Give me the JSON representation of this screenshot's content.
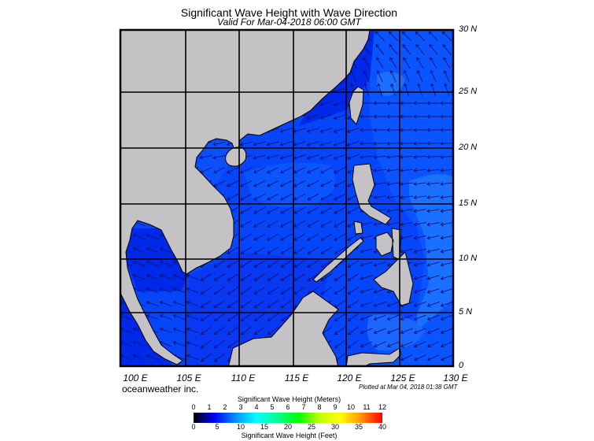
{
  "header": {
    "title": "Significant Wave Height with Wave Direction",
    "subtitle": "Valid For Mar-04-2018 06:00 GMT"
  },
  "map": {
    "lat_labels": [
      "30 N",
      "25 N",
      "20 N",
      "15 N",
      "10 N",
      "5 N",
      "0"
    ],
    "lon_labels": [
      "100 E",
      "105 E",
      "110 E",
      "115 E",
      "120 E",
      "125 E",
      "130 E"
    ],
    "land_color": "#c4c2c4",
    "ocean_colors": [
      "#0028e8",
      "#0646fa",
      "#1a66ff"
    ],
    "arrow_color": "#10107a"
  },
  "footer": {
    "credit": "oceanweather inc.",
    "plotted": "Plotted at Mar 04, 2018 01:38 GMT"
  },
  "legend": {
    "meters_title": "Significant Wave Height (Meters)",
    "feet_title": "Significant Wave Height (Feet)",
    "meters_ticks": [
      "0",
      "1",
      "2",
      "3",
      "4",
      "5",
      "6",
      "7",
      "8",
      "9",
      "10",
      "11",
      "12"
    ],
    "feet_ticks": [
      "0",
      "5",
      "10",
      "15",
      "20",
      "25",
      "30",
      "35",
      "40"
    ],
    "gradient_colors": [
      "#000000",
      "#0000ff",
      "#0090ff",
      "#00ffff",
      "#00ff90",
      "#00ff00",
      "#c0ff00",
      "#ffff00",
      "#ff9000",
      "#ff0000"
    ]
  }
}
